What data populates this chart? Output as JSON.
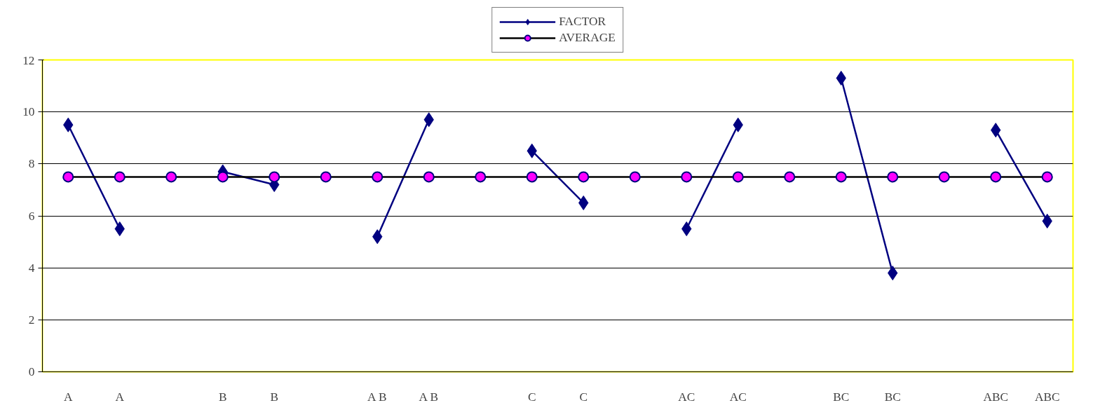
{
  "chart_data": {
    "type": "line",
    "categories": [
      "A",
      "A",
      null,
      "B",
      "B",
      null,
      "A B",
      "A B",
      null,
      "C",
      "C",
      null,
      "AC",
      "AC",
      null,
      "BC",
      "BC",
      null,
      "ABC",
      "ABC"
    ],
    "series": [
      {
        "name": "FACTOR",
        "color": "#000080",
        "marker": "diamond",
        "values": [
          9.5,
          5.5,
          null,
          7.7,
          7.2,
          null,
          5.2,
          9.7,
          null,
          8.5,
          6.5,
          null,
          5.5,
          9.5,
          null,
          11.3,
          3.8,
          null,
          9.3,
          5.8
        ]
      },
      {
        "name": "AVERAGE",
        "color": "#000000",
        "marker": "circle",
        "values": [
          7.5,
          7.5,
          7.5,
          7.5,
          7.5,
          7.5,
          7.5,
          7.5,
          7.5,
          7.5,
          7.5,
          7.5,
          7.5,
          7.5,
          7.5,
          7.5,
          7.5,
          7.5,
          7.5,
          7.5
        ]
      }
    ],
    "ylim": [
      0,
      12
    ],
    "yticks": [
      0,
      2,
      4,
      6,
      8,
      10,
      12
    ],
    "grid": "y",
    "legend": "top"
  }
}
